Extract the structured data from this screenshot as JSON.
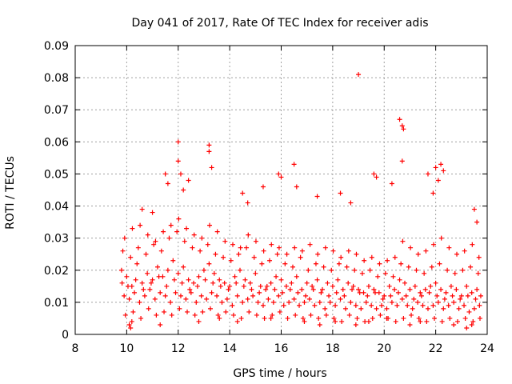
{
  "chart_data": {
    "type": "scatter",
    "title": "Day 041 of 2017, Rate Of TEC Index for receiver adis",
    "xlabel": "GPS time / hours",
    "ylabel": "ROTI / TECUs",
    "xlim": [
      8,
      24
    ],
    "ylim": [
      0,
      0.09
    ],
    "xticks": [
      "8",
      "10",
      "12",
      "14",
      "16",
      "18",
      "20",
      "22",
      "24"
    ],
    "yticks": [
      "0",
      "0.01",
      "0.02",
      "0.03",
      "0.04",
      "0.05",
      "0.06",
      "0.07",
      "0.08",
      "0.09"
    ],
    "grid": true,
    "marker": "+",
    "color": "#ff0000",
    "series": [
      {
        "name": "ROTI",
        "x": [
          9.8,
          10.0,
          10.2,
          10.4,
          10.6,
          10.8,
          11.0,
          11.2,
          11.4,
          11.6,
          11.8,
          12.0,
          12.2,
          12.4,
          12.6,
          12.8,
          13.0,
          13.2,
          13.4,
          13.6,
          13.8,
          14.0,
          14.2,
          14.4,
          14.6,
          14.8,
          15.0,
          15.2,
          15.4,
          15.6,
          15.8,
          16.0,
          16.2,
          16.4,
          16.6,
          16.8,
          17.0,
          17.2,
          17.4,
          17.6,
          17.8,
          18.0,
          18.2,
          18.4,
          18.6,
          18.8,
          19.0,
          19.2,
          19.4,
          19.6,
          19.8,
          20.0,
          20.2,
          20.4,
          20.6,
          20.8,
          21.0,
          21.2,
          21.4,
          21.6,
          21.8,
          22.0,
          22.2,
          22.4,
          22.6,
          22.8,
          23.0,
          23.2,
          23.4,
          23.6,
          23.75,
          9.9,
          10.1,
          10.3,
          10.5,
          10.7,
          10.9,
          11.1,
          11.3,
          11.5,
          11.7,
          11.9,
          12.1,
          12.3,
          12.5,
          12.7,
          12.9,
          13.1,
          13.3,
          13.5,
          13.7,
          13.9,
          14.1,
          14.3,
          14.5,
          14.7,
          14.9,
          15.1,
          15.3,
          15.5,
          15.7,
          15.9,
          16.1,
          16.3,
          16.5,
          16.7,
          16.9,
          17.1,
          17.3,
          17.5,
          17.7,
          17.9,
          18.1,
          18.3,
          18.5,
          18.7,
          18.9,
          19.1,
          19.3,
          19.5,
          19.7,
          19.9,
          20.1,
          20.3,
          20.5,
          20.7,
          20.9,
          21.1,
          21.3,
          21.5,
          21.7,
          21.9,
          22.1,
          22.3,
          22.5,
          22.7,
          22.9,
          23.1,
          23.3,
          23.5,
          23.7,
          9.85,
          10.15,
          10.45,
          10.75,
          11.05,
          11.35,
          11.65,
          11.95,
          12.25,
          12.55,
          12.85,
          13.15,
          13.45,
          13.75,
          14.05,
          14.35,
          14.65,
          14.95,
          15.25,
          15.55,
          15.85,
          16.15,
          16.45,
          16.75,
          17.05,
          17.35,
          17.65,
          17.95,
          18.25,
          18.55,
          18.85,
          19.15,
          19.45,
          19.75,
          20.05,
          20.35,
          20.65,
          20.95,
          21.25,
          21.55,
          21.85,
          22.15,
          22.45,
          22.75,
          23.05,
          23.35,
          23.65,
          9.95,
          10.25,
          10.55,
          10.85,
          11.15,
          11.45,
          11.75,
          12.05,
          12.35,
          12.65,
          12.95,
          13.25,
          13.55,
          13.85,
          14.15,
          14.45,
          14.75,
          15.05,
          15.35,
          15.65,
          15.95,
          16.25,
          16.55,
          16.85,
          17.15,
          17.45,
          17.75,
          18.05,
          18.35,
          18.65,
          18.95,
          19.25,
          19.55,
          19.85,
          20.15,
          20.45,
          20.75,
          21.05,
          21.35,
          21.65,
          21.95,
          22.25,
          22.55,
          22.85,
          23.15,
          23.45,
          23.72,
          9.82,
          10.05,
          10.35,
          10.65,
          10.95,
          11.25,
          11.55,
          11.85,
          12.15,
          12.45,
          12.75,
          13.05,
          13.35,
          13.65,
          13.95,
          14.25,
          14.55,
          14.85,
          15.15,
          15.45,
          15.75,
          16.05,
          16.35,
          16.65,
          16.95,
          17.25,
          17.55,
          17.85,
          18.15,
          18.45,
          18.75,
          19.05,
          19.35,
          19.65,
          19.95,
          20.25,
          20.55,
          20.85,
          21.15,
          21.45,
          21.75,
          22.05,
          22.35,
          22.65,
          22.95,
          23.25,
          23.55,
          9.92,
          10.22,
          10.52,
          10.82,
          11.12,
          11.42,
          11.72,
          12.02,
          12.32,
          12.62,
          12.92,
          13.22,
          13.52,
          13.82,
          14.12,
          14.42,
          14.72,
          15.02,
          15.32,
          15.62,
          15.92,
          16.22,
          16.52,
          16.82,
          17.12,
          17.42,
          17.72,
          18.02,
          18.32,
          18.62,
          18.92,
          19.22,
          19.52,
          19.82,
          20.12,
          20.42,
          20.72,
          21.02,
          21.32,
          21.62,
          21.92,
          22.22,
          22.52,
          22.82,
          23.12,
          23.42,
          23.68,
          10.6,
          11.0,
          11.5,
          11.6,
          12.0,
          12.0,
          12.1,
          12.2,
          12.4,
          13.2,
          13.3,
          13.2,
          14.5,
          14.7,
          15.3,
          15.9,
          16.0,
          16.5,
          16.6,
          17.4,
          18.3,
          18.7,
          19.0,
          19.6,
          19.7,
          20.3,
          20.6,
          20.7,
          20.7,
          20.75,
          21.7,
          21.9,
          22.0,
          22.1,
          22.2,
          22.3,
          23.5,
          23.6,
          10.1,
          10.15,
          10.2,
          11.3,
          12.8,
          13.6,
          14.3,
          15.6,
          16.9,
          17.5,
          18.1,
          18.9,
          19.4,
          20.1,
          21.0,
          21.4,
          22.7,
          23.2,
          23.4
        ],
        "y": [
          0.02,
          0.018,
          0.015,
          0.022,
          0.016,
          0.019,
          0.017,
          0.021,
          0.018,
          0.02,
          0.023,
          0.019,
          0.021,
          0.017,
          0.016,
          0.018,
          0.02,
          0.022,
          0.019,
          0.017,
          0.016,
          0.015,
          0.018,
          0.02,
          0.017,
          0.016,
          0.019,
          0.015,
          0.014,
          0.016,
          0.018,
          0.017,
          0.015,
          0.016,
          0.018,
          0.014,
          0.016,
          0.015,
          0.017,
          0.014,
          0.016,
          0.015,
          0.017,
          0.014,
          0.016,
          0.015,
          0.014,
          0.013,
          0.015,
          0.014,
          0.013,
          0.012,
          0.015,
          0.014,
          0.017,
          0.016,
          0.014,
          0.015,
          0.013,
          0.014,
          0.015,
          0.016,
          0.014,
          0.013,
          0.015,
          0.014,
          0.012,
          0.015,
          0.013,
          0.014,
          0.012,
          0.012,
          0.011,
          0.013,
          0.01,
          0.012,
          0.014,
          0.011,
          0.013,
          0.012,
          0.01,
          0.013,
          0.012,
          0.011,
          0.013,
          0.01,
          0.012,
          0.011,
          0.013,
          0.012,
          0.01,
          0.011,
          0.009,
          0.012,
          0.01,
          0.011,
          0.012,
          0.01,
          0.009,
          0.011,
          0.01,
          0.012,
          0.009,
          0.01,
          0.011,
          0.009,
          0.01,
          0.011,
          0.009,
          0.01,
          0.008,
          0.01,
          0.009,
          0.011,
          0.008,
          0.01,
          0.009,
          0.008,
          0.01,
          0.009,
          0.008,
          0.009,
          0.008,
          0.01,
          0.009,
          0.011,
          0.009,
          0.008,
          0.01,
          0.009,
          0.008,
          0.009,
          0.01,
          0.008,
          0.009,
          0.01,
          0.008,
          0.009,
          0.007,
          0.008,
          0.009,
          0.026,
          0.024,
          0.027,
          0.025,
          0.028,
          0.026,
          0.03,
          0.032,
          0.029,
          0.027,
          0.026,
          0.028,
          0.025,
          0.024,
          0.023,
          0.025,
          0.027,
          0.024,
          0.022,
          0.023,
          0.025,
          0.022,
          0.021,
          0.024,
          0.02,
          0.022,
          0.021,
          0.02,
          0.022,
          0.021,
          0.02,
          0.019,
          0.02,
          0.018,
          0.019,
          0.018,
          0.022,
          0.021,
          0.02,
          0.019,
          0.021,
          0.022,
          0.02,
          0.019,
          0.02,
          0.021,
          0.019,
          0.006,
          0.007,
          0.005,
          0.008,
          0.006,
          0.007,
          0.006,
          0.008,
          0.007,
          0.006,
          0.007,
          0.008,
          0.006,
          0.007,
          0.006,
          0.005,
          0.007,
          0.006,
          0.005,
          0.006,
          0.007,
          0.005,
          0.006,
          0.005,
          0.006,
          0.005,
          0.006,
          0.005,
          0.004,
          0.006,
          0.005,
          0.004,
          0.005,
          0.006,
          0.005,
          0.004,
          0.005,
          0.006,
          0.005,
          0.004,
          0.005,
          0.004,
          0.005,
          0.004,
          0.005,
          0.004,
          0.005,
          0.016,
          0.015,
          0.017,
          0.014,
          0.016,
          0.018,
          0.015,
          0.017,
          0.016,
          0.014,
          0.015,
          0.017,
          0.016,
          0.015,
          0.014,
          0.016,
          0.015,
          0.014,
          0.013,
          0.015,
          0.014,
          0.013,
          0.014,
          0.013,
          0.012,
          0.014,
          0.013,
          0.012,
          0.013,
          0.012,
          0.014,
          0.013,
          0.012,
          0.013,
          0.011,
          0.012,
          0.013,
          0.012,
          0.011,
          0.012,
          0.013,
          0.012,
          0.011,
          0.012,
          0.011,
          0.012,
          0.011,
          0.03,
          0.033,
          0.034,
          0.031,
          0.029,
          0.032,
          0.034,
          0.036,
          0.033,
          0.031,
          0.03,
          0.034,
          0.032,
          0.029,
          0.028,
          0.027,
          0.031,
          0.029,
          0.026,
          0.028,
          0.027,
          0.025,
          0.027,
          0.026,
          0.028,
          0.025,
          0.027,
          0.026,
          0.024,
          0.026,
          0.025,
          0.023,
          0.024,
          0.022,
          0.023,
          0.024,
          0.029,
          0.027,
          0.025,
          0.026,
          0.028,
          0.03,
          0.027,
          0.025,
          0.026,
          0.028,
          0.024,
          0.039,
          0.038,
          0.05,
          0.047,
          0.06,
          0.054,
          0.05,
          0.045,
          0.048,
          0.059,
          0.052,
          0.057,
          0.044,
          0.041,
          0.046,
          0.05,
          0.049,
          0.053,
          0.046,
          0.043,
          0.044,
          0.041,
          0.081,
          0.05,
          0.049,
          0.047,
          0.067,
          0.065,
          0.054,
          0.064,
          0.05,
          0.044,
          0.052,
          0.048,
          0.053,
          0.051,
          0.039,
          0.035,
          0.003,
          0.002,
          0.004,
          0.003,
          0.004,
          0.005,
          0.004,
          0.005,
          0.004,
          0.003,
          0.004,
          0.003,
          0.004,
          0.005,
          0.003,
          0.004,
          0.003,
          0.002,
          0.003
        ]
      }
    ]
  }
}
